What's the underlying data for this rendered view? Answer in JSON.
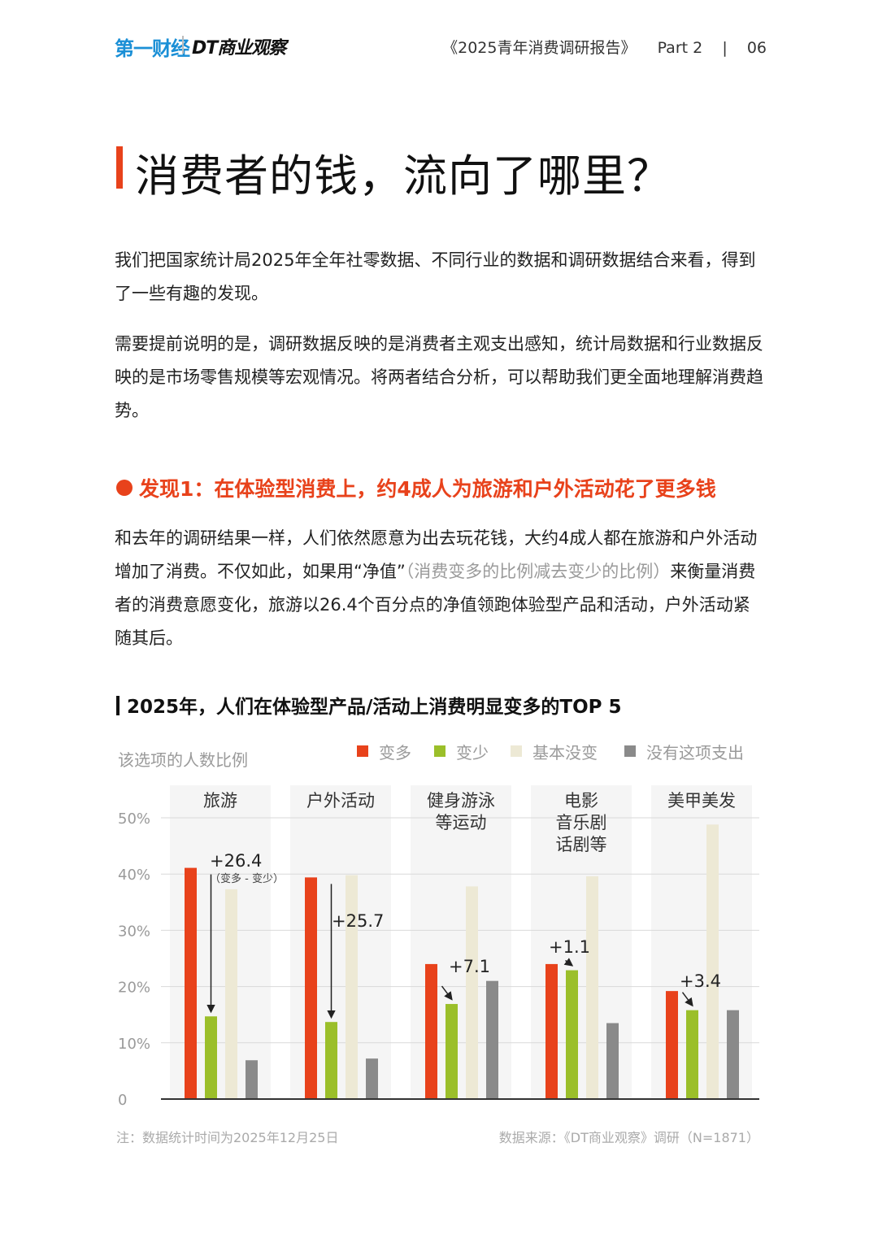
{
  "header": {
    "logo_yicai": "第一财经",
    "logo_dt": "DT商业观察",
    "report": "《2025青年消费调研报告》",
    "part": "Part 2",
    "separator": "|",
    "page": "06"
  },
  "title": "消费者的钱，流向了哪里？",
  "paragraphs": {
    "p1": "我们把国家统计局2025年全年社零数据、不同行业的数据和调研数据结合来看，得到了一些有趣的发现。",
    "p2": "需要提前说明的是，调研数据反映的是消费者主观支出感知，统计局数据和行业数据反映的是市场零售规模等宏观情况。将两者结合分析，可以帮助我们更全面地理解消费趋势。",
    "p3_a": "和去年的调研结果一样，人们依然愿意为出去玩花钱，大约4成人都在旅游和户外活动增加了消费。不仅如此，如果用“净值”",
    "p3_b": "（消费变多的比例减去变少的比例）",
    "p3_c": "来衡量消费者的消费意愿变化，旅游以26.4个百分点的净值领跑体验型产品和活动，户外活动紧随其后。"
  },
  "finding": "发现1：在体验型消费上，约4成人为旅游和户外活动花了更多钱",
  "chart_title": "2025年，人们在体验型产品/活动上消费明显变多的TOP 5",
  "chart_data": {
    "type": "bar",
    "ylabel": "该选项的人数比例",
    "ylim": [
      0,
      50
    ],
    "yticks": [
      "0",
      "10%",
      "20%",
      "30%",
      "40%",
      "50%"
    ],
    "grid": true,
    "legend_position": "top-right",
    "categories": [
      [
        "旅游"
      ],
      [
        "户外活动"
      ],
      [
        "健身游泳",
        "等运动"
      ],
      [
        "电影",
        "音乐剧",
        "话剧等"
      ],
      [
        "美甲美发"
      ]
    ],
    "series": [
      {
        "name": "变多",
        "color": "#e8421b",
        "values": [
          41.1,
          39.4,
          24.0,
          24.0,
          19.2
        ]
      },
      {
        "name": "变少",
        "color": "#9bbf2a",
        "values": [
          14.7,
          13.7,
          16.9,
          22.9,
          15.8
        ]
      },
      {
        "name": "基本没变",
        "color": "#ede9d5",
        "values": [
          37.3,
          39.8,
          37.8,
          39.6,
          48.8
        ]
      },
      {
        "name": "没有这项支出",
        "color": "#8a8a8a",
        "values": [
          6.9,
          7.2,
          21.0,
          13.5,
          15.8
        ]
      }
    ],
    "annotations": [
      {
        "text": "+26.4",
        "sub": "（变多 - 变少）"
      },
      {
        "text": "+25.7"
      },
      {
        "text": "+7.1"
      },
      {
        "text": "+1.1"
      },
      {
        "text": "+3.4"
      }
    ]
  },
  "note": "注：数据统计时间为2025年12月25日",
  "source": "数据来源：《DT商业观察》调研（N=1871）"
}
